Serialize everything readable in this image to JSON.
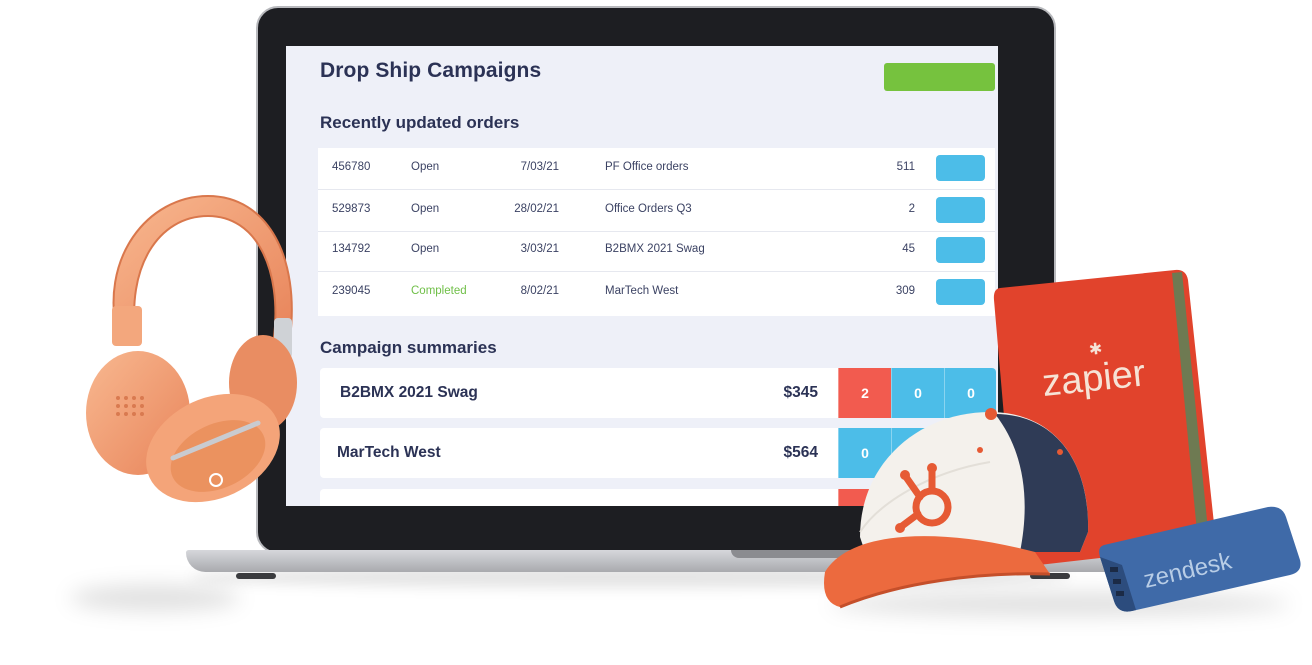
{
  "app": {
    "page_title": "Drop Ship Campaigns",
    "primary_button_label": ""
  },
  "recent_orders": {
    "section_title": "Recently updated orders",
    "rows": [
      {
        "id": "456780",
        "status": "Open",
        "date": "7/03/21",
        "name": "PF Office orders",
        "qty": "511"
      },
      {
        "id": "529873",
        "status": "Open",
        "date": "28/02/21",
        "name": "Office Orders Q3",
        "qty": "2"
      },
      {
        "id": "134792",
        "status": "Open",
        "date": "3/03/21",
        "name": "B2BMX 2021 Swag",
        "qty": "45"
      },
      {
        "id": "239045",
        "status": "Completed",
        "date": "8/02/21",
        "name": "MarTech West",
        "qty": "309"
      }
    ]
  },
  "campaign_summaries": {
    "section_title": "Campaign summaries",
    "cards": [
      {
        "name": "B2BMX 2021 Swag",
        "amount": "$345",
        "stats": [
          "2",
          "0",
          "0"
        ]
      },
      {
        "name": "MarTech West",
        "amount": "$564",
        "stats": [
          "0",
          "",
          ""
        ]
      },
      {
        "name": "",
        "amount": "",
        "stats": [
          "",
          "",
          ""
        ]
      }
    ]
  },
  "props": {
    "notebook_brand": "zapier",
    "power_bank_brand": "zendesk"
  },
  "colors": {
    "accent_green": "#76c23e",
    "accent_blue": "#4cbde8",
    "accent_red": "#f25b4f",
    "completed_green": "#6fbf47",
    "heading_navy": "#2b3255"
  }
}
